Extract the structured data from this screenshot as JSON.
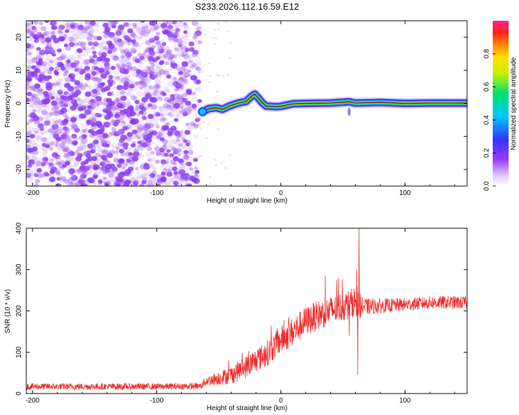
{
  "title": "S233.2026.112.16.59.E12",
  "colors": {
    "snr_line": "#ee2a2a",
    "noise_purple": "#8a3cf0",
    "track_red": "#dd2222"
  },
  "chart_data": [
    {
      "type": "heatmap",
      "title": "S233.2026.112.16.59.E12",
      "xlabel": "Height of straight line (km)",
      "ylabel": "Frequency (Hz)",
      "xlim": [
        -205,
        150
      ],
      "ylim": [
        -25,
        25
      ],
      "xticks": [
        -200,
        -100,
        0,
        100
      ],
      "yticks": [
        -20,
        -10,
        0,
        10,
        20
      ],
      "colorbar": {
        "label": "Normalized spectral amplitude",
        "range": [
          0,
          1
        ],
        "ticks": [
          0.0,
          0.2,
          0.4,
          0.6,
          0.8
        ],
        "colormap": "rainbow (white-violet-blue-cyan-green-yellow-orange-red-magenta)"
      },
      "noise_region_x": [
        -205,
        -65
      ],
      "track": {
        "x": [
          -63,
          -58,
          -52,
          -47,
          -42,
          -37,
          -33,
          -28,
          -24,
          -21,
          -18,
          -15,
          -12,
          -8,
          -4,
          0,
          10,
          20,
          40,
          55,
          60,
          80,
          100,
          120,
          150
        ],
        "y": [
          -2.5,
          -1.6,
          -1.3,
          -1.8,
          -0.9,
          -0.2,
          0.2,
          0.6,
          2.0,
          2.8,
          1.6,
          0.2,
          -0.8,
          -0.9,
          -1.0,
          -0.9,
          -0.1,
          0.0,
          0.1,
          0.5,
          0.1,
          0.3,
          0.0,
          0.1,
          0.1
        ]
      }
    },
    {
      "type": "line",
      "xlabel": "Height of straight line (km)",
      "ylabel": "SNR (10 * v/v)",
      "xlim": [
        -205,
        150
      ],
      "ylim": [
        0,
        400
      ],
      "xticks": [
        -200,
        -100,
        0,
        100
      ],
      "yticks": [
        0,
        100,
        200,
        300,
        400
      ],
      "series": [
        {
          "name": "SNR",
          "x": [
            -205,
            -150,
            -100,
            -65,
            -60,
            -40,
            -25,
            -10,
            0,
            10,
            20,
            30,
            40,
            50,
            55,
            60,
            63,
            65,
            70,
            80,
            100,
            120,
            150
          ],
          "y": [
            17,
            17,
            17,
            18,
            30,
            45,
            70,
            100,
            130,
            150,
            175,
            190,
            200,
            210,
            215,
            225,
            320,
            210,
            210,
            212,
            215,
            220,
            220
          ],
          "noise_amplitude": [
            8,
            8,
            8,
            8,
            12,
            22,
            28,
            32,
            34,
            36,
            36,
            36,
            36,
            36,
            36,
            36,
            40,
            24,
            20,
            18,
            16,
            16,
            16
          ],
          "spikes": [
            {
              "x": 63,
              "y": 400
            },
            {
              "x": 62,
              "y": 45
            },
            {
              "x": 61,
              "y": 300
            },
            {
              "x": 55,
              "y": 140
            }
          ]
        }
      ]
    }
  ]
}
